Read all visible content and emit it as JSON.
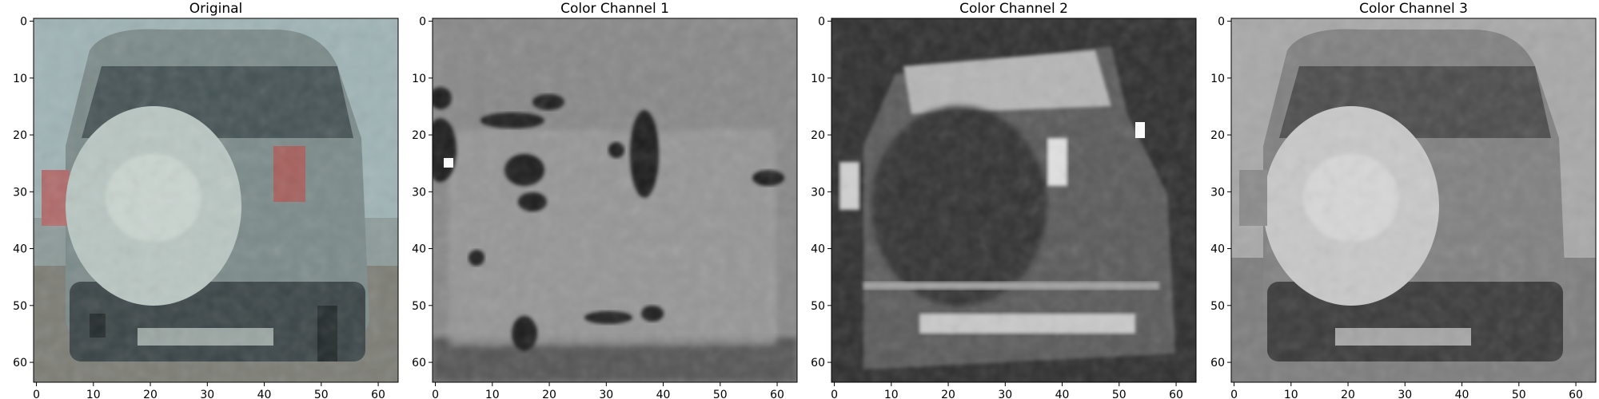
{
  "figure": {
    "panels": [
      {
        "title": "Original",
        "kind": "color"
      },
      {
        "title": "Color Channel 1",
        "kind": "ch1"
      },
      {
        "title": "Color Channel 2",
        "kind": "ch2"
      },
      {
        "title": "Color Channel 3",
        "kind": "ch3"
      }
    ],
    "x_ticks": [
      0,
      10,
      20,
      30,
      40,
      50,
      60
    ],
    "y_ticks": [
      0,
      10,
      20,
      30,
      40,
      50,
      60
    ],
    "extent": [
      -0.5,
      63.5
    ],
    "grid": false
  },
  "colors": {
    "sky": "#9fb3b5",
    "car_dark": "#3a4446",
    "car_body": "#7c8a8a",
    "spare_tire": "#b9c6c2",
    "tail_light": "#b06a6a",
    "road": "#7d7d76"
  }
}
